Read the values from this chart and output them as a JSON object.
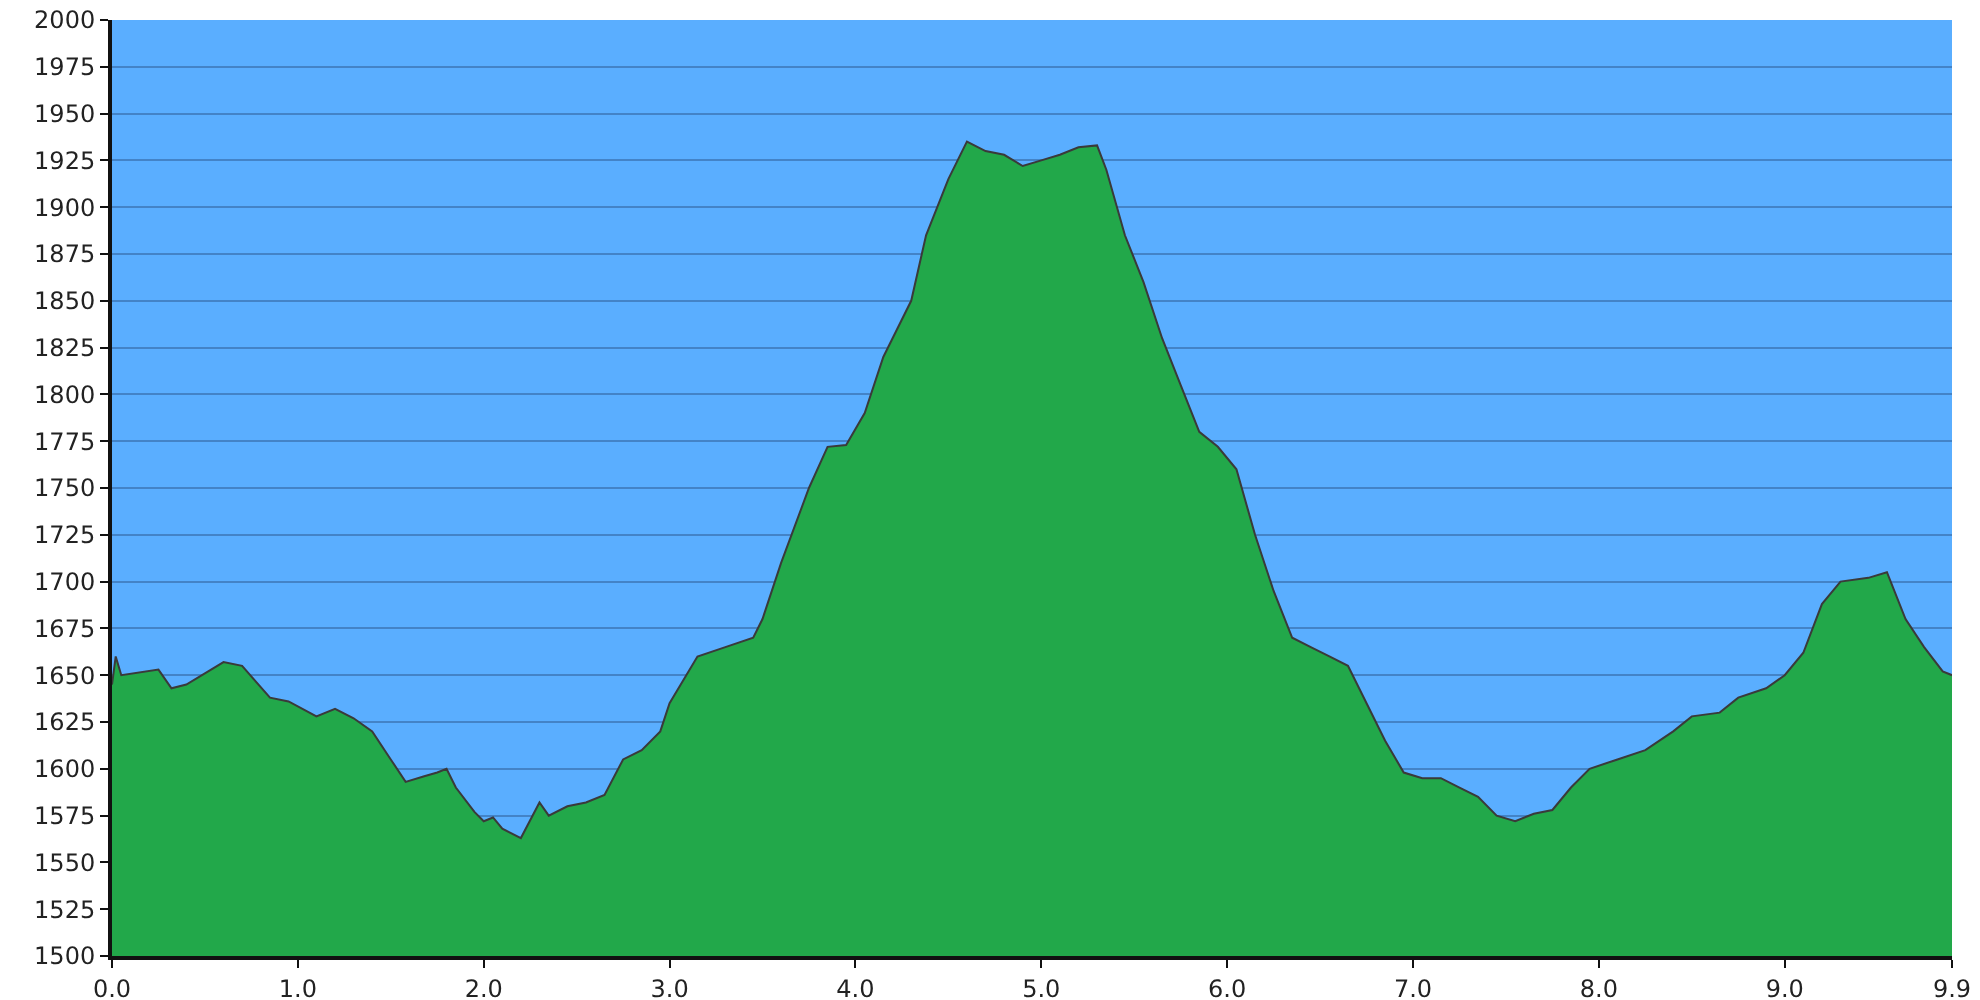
{
  "chart_data": {
    "type": "area",
    "x": [
      0,
      0.02,
      0.05,
      0.25,
      0.32,
      0.4,
      0.6,
      0.7,
      0.85,
      0.95,
      1.1,
      1.2,
      1.3,
      1.4,
      1.5,
      1.58,
      1.68,
      1.75,
      1.8,
      1.85,
      1.95,
      2.0,
      2.05,
      2.1,
      2.2,
      2.3,
      2.35,
      2.45,
      2.55,
      2.65,
      2.75,
      2.85,
      2.95,
      3.0,
      3.15,
      3.3,
      3.45,
      3.5,
      3.6,
      3.75,
      3.85,
      3.95,
      4.05,
      4.15,
      4.3,
      4.38,
      4.5,
      4.6,
      4.7,
      4.8,
      4.9,
      5.0,
      5.1,
      5.2,
      5.3,
      5.35,
      5.45,
      5.55,
      5.65,
      5.75,
      5.85,
      5.95,
      6.05,
      6.15,
      6.25,
      6.35,
      6.45,
      6.55,
      6.65,
      6.75,
      6.85,
      6.95,
      7.05,
      7.15,
      7.25,
      7.35,
      7.45,
      7.55,
      7.65,
      7.75,
      7.85,
      7.95,
      8.1,
      8.25,
      8.4,
      8.5,
      8.65,
      8.75,
      8.9,
      9.0,
      9.1,
      9.2,
      9.3,
      9.45,
      9.55,
      9.65,
      9.75,
      9.85,
      9.9
    ],
    "series": [
      {
        "color": "#22a84a",
        "values": [
          1645,
          1660,
          1650,
          1653,
          1643,
          1645,
          1657,
          1655,
          1638,
          1636,
          1628,
          1632,
          1627,
          1620,
          1605,
          1593,
          1596,
          1598,
          1600,
          1590,
          1577,
          1572,
          1574,
          1568,
          1563,
          1582,
          1575,
          1580,
          1582,
          1586,
          1605,
          1610,
          1620,
          1635,
          1660,
          1665,
          1670,
          1680,
          1710,
          1750,
          1772,
          1773,
          1790,
          1820,
          1850,
          1885,
          1915,
          1935,
          1930,
          1928,
          1922,
          1925,
          1928,
          1932,
          1933,
          1920,
          1885,
          1860,
          1830,
          1805,
          1780,
          1772,
          1760,
          1725,
          1695,
          1670,
          1665,
          1660,
          1655,
          1635,
          1615,
          1598,
          1595,
          1595,
          1590,
          1585,
          1575,
          1572,
          1576,
          1578,
          1590,
          1600,
          1605,
          1610,
          1620,
          1628,
          1630,
          1638,
          1643,
          1650,
          1662,
          1688,
          1700,
          1702,
          1705,
          1680,
          1665,
          1652,
          1650
        ]
      }
    ],
    "xlim": [
      0,
      9.9
    ],
    "xticks": [
      {
        "value": 0,
        "label": "0.0"
      },
      {
        "value": 1,
        "label": "1.0"
      },
      {
        "value": 2,
        "label": "2.0"
      },
      {
        "value": 3,
        "label": "3.0"
      },
      {
        "value": 4,
        "label": "4.0"
      },
      {
        "value": 5,
        "label": "5.0"
      },
      {
        "value": 6,
        "label": "6.0"
      },
      {
        "value": 7,
        "label": "7.0"
      },
      {
        "value": 8,
        "label": "8.0"
      },
      {
        "value": 9,
        "label": "9.0"
      },
      9.9
    ],
    "ylim": [
      1500,
      2000
    ],
    "yticks": [
      1500,
      1525,
      1550,
      1575,
      1600,
      1625,
      1650,
      1675,
      1700,
      1725,
      1750,
      1775,
      1800,
      1825,
      1850,
      1875,
      1900,
      1925,
      1950,
      1975,
      2000
    ],
    "grid": "y"
  }
}
